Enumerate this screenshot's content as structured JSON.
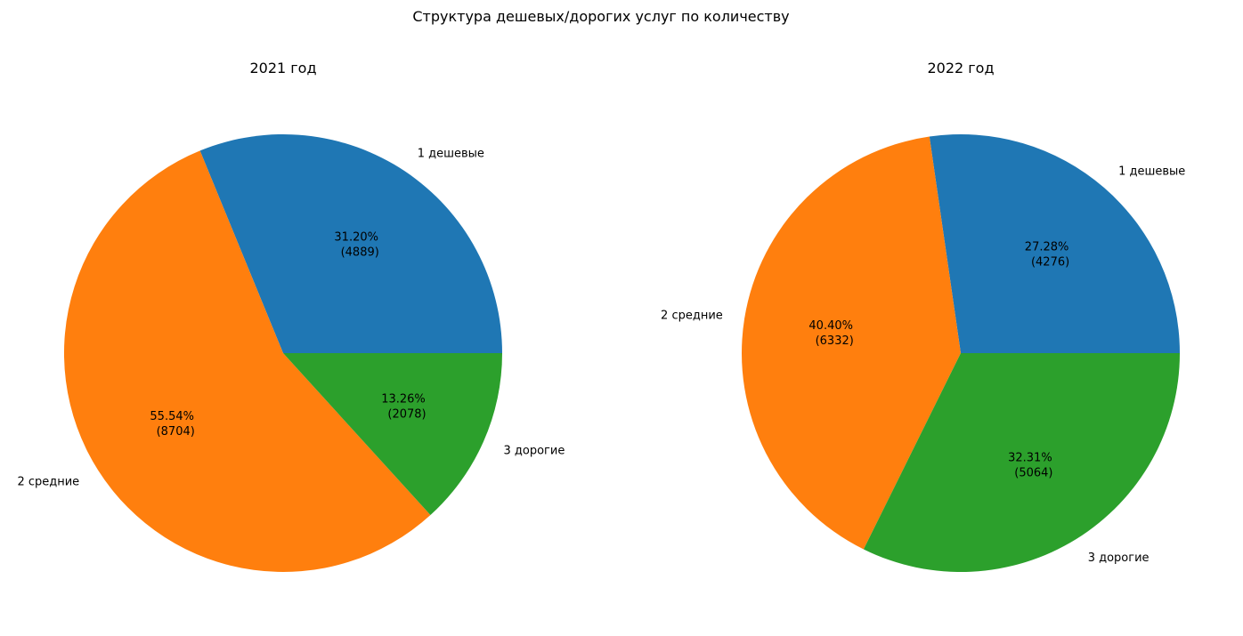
{
  "figure": {
    "title": "Структура дешевых/дорогих услуг по количеству"
  },
  "chart_data": [
    {
      "type": "pie",
      "title": "2021 год",
      "start_angle": "0 (3 o'clock), counter-clockwise",
      "labels": [
        "1 дешевые",
        "2 средние",
        "3 дорогие"
      ],
      "values": [
        4889,
        8704,
        2078
      ],
      "percent_labels": [
        "31.20%",
        "55.54%",
        "13.26%"
      ],
      "count_labels": [
        "(4889)",
        "(8704)",
        "(2078)"
      ],
      "colors": [
        "#1f77b4",
        "#ff7f0e",
        "#2ca02c"
      ]
    },
    {
      "type": "pie",
      "title": "2022 год",
      "start_angle": "0 (3 o'clock), counter-clockwise",
      "labels": [
        "1 дешевые",
        "2 средние",
        "3 дорогие"
      ],
      "values": [
        4276,
        6332,
        5064
      ],
      "percent_labels": [
        "27.28%",
        "40.40%",
        "32.31%"
      ],
      "count_labels": [
        "(4276)",
        "(6332)",
        "(5064)"
      ],
      "colors": [
        "#1f77b4",
        "#ff7f0e",
        "#2ca02c"
      ]
    }
  ]
}
